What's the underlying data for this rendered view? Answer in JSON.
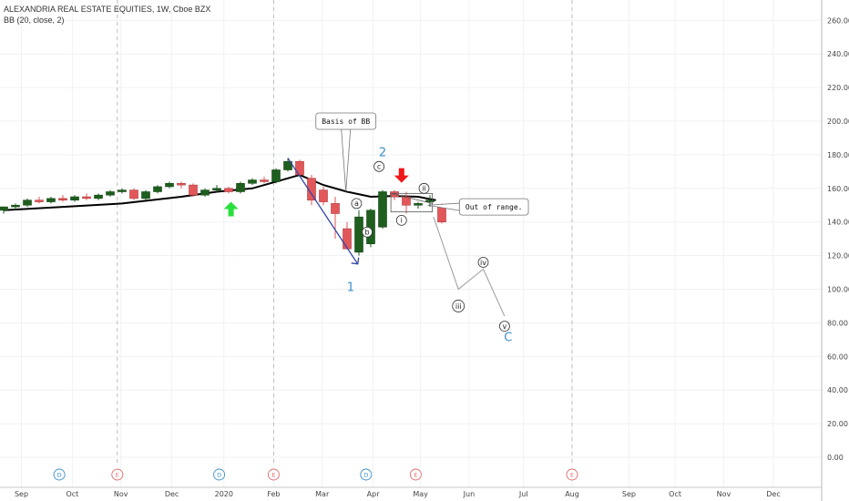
{
  "chart_data": {
    "type": "candlestick",
    "title": "ALEXANDRIA REAL ESTATE EQUITIES, 1W, Cboe BZX",
    "indicator": "BB (20, close, 2)",
    "ylim": [
      -8,
      270
    ],
    "y_ticks": [
      "260.00",
      "240.00",
      "220.00",
      "200.00",
      "180.00",
      "160.00",
      "140.00",
      "120.00",
      "100.00",
      "80.00",
      "60.00",
      "40.00",
      "20.00",
      "0.00"
    ],
    "x_ticks": [
      {
        "i": 1.5,
        "label": "Sep"
      },
      {
        "i": 5.8,
        "label": "Oct"
      },
      {
        "i": 9.9,
        "label": "Nov"
      },
      {
        "i": 14.2,
        "label": "Dec"
      },
      {
        "i": 18.6,
        "label": "2020"
      },
      {
        "i": 22.8,
        "label": "Feb"
      },
      {
        "i": 26.9,
        "label": "Mar"
      },
      {
        "i": 31.2,
        "label": "Apr"
      },
      {
        "i": 35.2,
        "label": "May"
      },
      {
        "i": 39.3,
        "label": "Jun"
      },
      {
        "i": 43.9,
        "label": "Jul"
      },
      {
        "i": 48.0,
        "label": "Aug"
      },
      {
        "i": 52.8,
        "label": "Sep"
      },
      {
        "i": 56.7,
        "label": "Oct"
      },
      {
        "i": 60.8,
        "label": "Nov"
      },
      {
        "i": 65.0,
        "label": "Dec"
      }
    ],
    "vlines": [
      9.6,
      22.8,
      48.0
    ],
    "events": [
      {
        "i": 4.7,
        "label": "D"
      },
      {
        "i": 9.6,
        "label": "E"
      },
      {
        "i": 18.2,
        "label": "D"
      },
      {
        "i": 22.8,
        "label": "E"
      },
      {
        "i": 30.6,
        "label": "D"
      },
      {
        "i": 34.8,
        "label": "E"
      },
      {
        "i": 48.0,
        "label": "E"
      }
    ],
    "candles": [
      [
        147,
        149,
        145,
        149
      ],
      [
        149,
        151,
        147,
        150
      ],
      [
        150,
        154,
        149,
        153
      ],
      [
        153,
        155,
        151,
        152
      ],
      [
        152,
        155,
        151,
        154
      ],
      [
        154,
        156,
        152,
        153
      ],
      [
        153,
        156,
        152,
        155
      ],
      [
        155,
        157,
        153,
        154
      ],
      [
        154,
        157,
        153,
        156
      ],
      [
        156,
        159,
        155,
        158
      ],
      [
        158,
        160,
        157,
        159
      ],
      [
        159,
        160,
        153,
        154
      ],
      [
        154,
        159,
        153,
        158
      ],
      [
        158,
        162,
        157,
        161
      ],
      [
        161,
        164,
        160,
        163
      ],
      [
        163,
        164,
        160,
        162
      ],
      [
        162,
        163,
        155,
        156
      ],
      [
        156,
        160,
        155,
        159
      ],
      [
        159,
        162,
        158,
        160
      ],
      [
        160,
        161,
        157,
        158
      ],
      [
        158,
        164,
        157,
        163
      ],
      [
        163,
        166,
        162,
        165
      ],
      [
        165,
        167,
        163,
        164
      ],
      [
        164,
        172,
        163,
        171
      ],
      [
        171,
        178,
        170,
        176
      ],
      [
        176,
        177,
        167,
        168
      ],
      [
        166,
        168,
        150,
        153
      ],
      [
        159,
        161,
        150,
        152
      ],
      [
        151,
        155,
        130,
        145
      ],
      [
        136,
        140,
        124,
        124
      ],
      [
        122,
        147,
        120,
        143
      ],
      [
        127,
        148,
        125,
        147
      ],
      [
        137,
        159,
        136,
        158
      ],
      [
        158,
        159,
        153,
        155
      ],
      [
        155,
        158,
        145,
        150
      ],
      [
        150,
        152,
        148,
        151
      ],
      [
        152,
        156,
        149,
        153
      ],
      [
        150,
        151,
        139,
        140
      ]
    ],
    "bb_basis": [
      [
        0,
        147
      ],
      [
        5,
        149
      ],
      [
        10,
        151
      ],
      [
        15,
        155
      ],
      [
        18,
        158
      ],
      [
        21,
        160
      ],
      [
        23,
        164
      ],
      [
        25,
        168
      ],
      [
        27,
        162
      ],
      [
        29,
        158
      ],
      [
        31,
        155
      ],
      [
        33,
        155.5
      ],
      [
        35,
        155
      ],
      [
        36.5,
        153
      ]
    ],
    "arrows": [
      {
        "i": 19.2,
        "v": 152,
        "dir": "up",
        "color": "#27e03a"
      },
      {
        "i": 33.6,
        "v": 172,
        "dir": "down",
        "color": "#f01818"
      }
    ],
    "trendline": [
      [
        24.0,
        178
      ],
      [
        29.9,
        115
      ]
    ],
    "projection": [
      [
        36.3,
        143
      ],
      [
        38.4,
        100
      ],
      [
        40.5,
        112
      ],
      [
        42.3,
        84
      ]
    ],
    "callouts": [
      {
        "text": "Basis of BB",
        "i": 28.9,
        "v": 200,
        "tip_i": 28.9,
        "tip_v": 158
      },
      {
        "text": "Out of range.",
        "i": 41.4,
        "v": 149,
        "tip_i": 35.8,
        "tip_v": 150
      }
    ],
    "box": {
      "i0": 32.7,
      "i1": 36.2,
      "v0": 146,
      "v1": 157
    },
    "wave_labels": [
      {
        "text": "a",
        "i": 29.8,
        "v": 151
      },
      {
        "text": "b",
        "i": 30.7,
        "v": 134
      },
      {
        "text": "c",
        "i": 31.7,
        "v": 173
      },
      {
        "text": "i",
        "i": 33.6,
        "v": 141
      },
      {
        "text": "ii",
        "i": 35.5,
        "v": 160
      },
      {
        "text": "iii",
        "i": 38.4,
        "v": 90
      },
      {
        "text": "iv",
        "i": 40.5,
        "v": 116
      },
      {
        "text": "v",
        "i": 42.3,
        "v": 78
      }
    ],
    "big_labels": [
      {
        "text": "1",
        "i": 29.3,
        "v": 99
      },
      {
        "text": "2",
        "i": 32.0,
        "v": 179
      },
      {
        "text": "C",
        "i": 42.6,
        "v": 69
      }
    ],
    "colors": {
      "up": "#1e5e1e",
      "down": "#e2575a",
      "bb": "#000000",
      "trend": "#3346a7",
      "event_d": "#3d8fc9",
      "event_e": "#e06a6a"
    }
  }
}
